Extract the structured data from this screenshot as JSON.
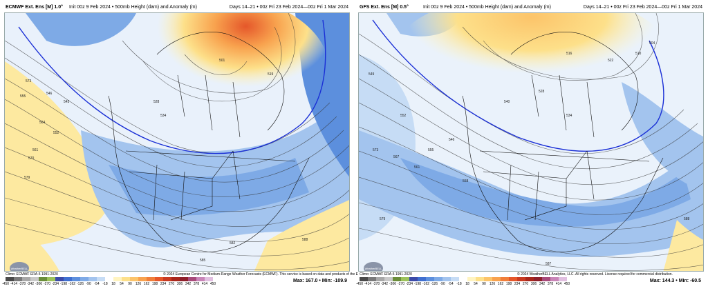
{
  "panels": [
    {
      "model_title": "ECMWF Ext. Ens [M] 1.0°",
      "run_info": "Init 00z 9 Feb 2024 • 500mb Height (dam) and Anomaly (m)",
      "valid": "Days 14–21 • 00z Fri 23 Feb 2024—00z Fri 1 Mar 2024",
      "climo": "Climo: ECMWF ERA-5 1991-2020",
      "copyright": "© 2024 European Centre for Medium-Range Weather Forecasts (ECMWF). This service is based on data and products of the ECMWF.",
      "max_label": "Max:",
      "max_value": "167.0",
      "min_label": "Min:",
      "min_value": "-109.9",
      "logo_text": "WeatherBELL",
      "contour_labels": [
        "573",
        "555",
        "546",
        "564",
        "579",
        "582",
        "585",
        "528",
        "534",
        "543",
        "552",
        "561",
        "570",
        "588",
        "501",
        "519",
        "510",
        "522",
        "540",
        "573"
      ]
    },
    {
      "model_title": "GFS Ext. Ens [M] 0.5°",
      "run_info": "Init 00z 9 Feb 2024 • 500mb Height (dam) and Anomaly (m)",
      "valid": "Days 14–21 • 00z Fri 23 Feb 2024—00z Fri 1 Mar 2024",
      "climo": "Climo: ECMWF ERA-5 1991-2020",
      "copyright": "© 2024 WeatherBELL Analytics, LLC. All rights reserved. License required for commercial distribution.",
      "max_label": "Max:",
      "max_value": "144.3",
      "min_label": "Min:",
      "min_value": "-60.5",
      "logo_text": "WeatherBELL",
      "contour_labels": [
        "549",
        "540",
        "552",
        "558",
        "567",
        "573",
        "579",
        "587",
        "528",
        "534",
        "516",
        "522",
        "510",
        "504",
        "546",
        "555",
        "561",
        "588"
      ]
    }
  ],
  "colorbar": {
    "ticks": [
      "-450",
      "-414",
      "-378",
      "-342",
      "-306",
      "-270",
      "-234",
      "-198",
      "-162",
      "-126",
      "-90",
      "-54",
      "-18",
      "18",
      "54",
      "90",
      "126",
      "162",
      "198",
      "234",
      "270",
      "306",
      "342",
      "378",
      "414",
      "450"
    ],
    "colors": [
      "#4a4a4a",
      "#7a7a7a",
      "#a8a8a8",
      "#c9c9c9",
      "#6b8e3a",
      "#9cc25a",
      "#3b4aa8",
      "#3f6fd0",
      "#5c8fdd",
      "#7eaae6",
      "#a3c4ee",
      "#c6dcf5",
      "#ffffff",
      "#fff4c0",
      "#fde08a",
      "#fcc46a",
      "#f8a24e",
      "#f07e3a",
      "#e5572a",
      "#c93b22",
      "#a9271c",
      "#8e1f2a",
      "#a84a7a",
      "#c985b8",
      "#e1bfe0"
    ]
  }
}
